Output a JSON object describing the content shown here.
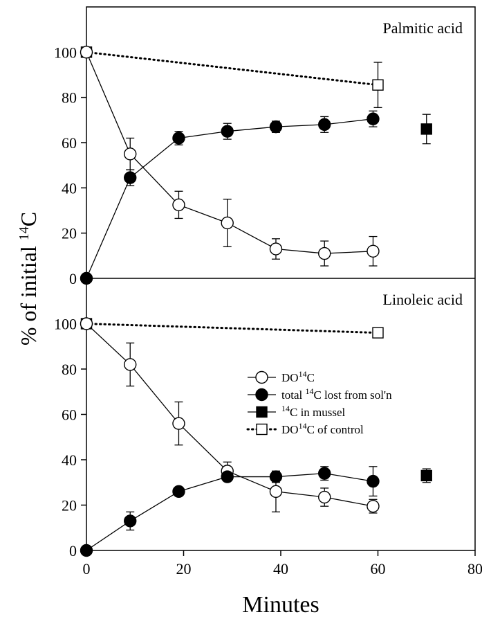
{
  "chart_data": {
    "type": "line",
    "xlabel": "Minutes",
    "ylabel": "% of initial ",
    "ylabel_superscript": "14",
    "ylabel_suffix": "C",
    "xlim": [
      0,
      80
    ],
    "x_ticks": [
      0,
      20,
      40,
      60,
      80
    ],
    "grid": false,
    "legend": {
      "placement": "inside bottom panel, right",
      "entries": [
        {
          "series": "doc",
          "prefix": "DO",
          "sup": "14",
          "suffix": "C"
        },
        {
          "series": "total",
          "prefix": "total ",
          "sup": "14",
          "suffix": "C lost from sol'n"
        },
        {
          "series": "mussel",
          "prefix": "",
          "sup": "14",
          "suffix": "C in mussel"
        },
        {
          "series": "control",
          "prefix": "DO",
          "sup": "14",
          "suffix": "C of control"
        }
      ]
    },
    "panels": [
      {
        "title": "Palmitic acid",
        "ylim": [
          0,
          120
        ],
        "y_ticks": [
          0,
          20,
          40,
          60,
          80,
          100
        ],
        "series": [
          {
            "id": "doc",
            "marker": "open-circle",
            "line": "solid",
            "x": [
              0,
              9,
              19,
              29,
              39,
              49,
              59
            ],
            "y": [
              100,
              55,
              32.5,
              24.5,
              13,
              11,
              12
            ],
            "err": [
              0,
              7,
              6,
              10.5,
              4.5,
              5.5,
              6.5
            ]
          },
          {
            "id": "total",
            "marker": "filled-circle",
            "line": "solid",
            "x": [
              0,
              9,
              19,
              29,
              39,
              49,
              59
            ],
            "y": [
              0,
              44.5,
              62,
              65,
              67,
              68,
              70.5
            ],
            "err": [
              0,
              3.5,
              3,
              3.5,
              2.5,
              3.5,
              3.5
            ]
          },
          {
            "id": "mussel",
            "marker": "filled-square",
            "line": "none",
            "x": [
              70
            ],
            "y": [
              66
            ],
            "err": [
              6.5
            ]
          },
          {
            "id": "control",
            "marker": "open-square",
            "line": "dotted",
            "x": [
              0,
              60
            ],
            "y": [
              100,
              85.5
            ],
            "err": [
              0,
              10
            ]
          }
        ]
      },
      {
        "title": "Linoleic acid",
        "ylim": [
          0,
          120
        ],
        "y_ticks": [
          0,
          20,
          40,
          60,
          80,
          100
        ],
        "series": [
          {
            "id": "doc",
            "marker": "open-circle",
            "line": "solid",
            "x": [
              0,
              9,
              19,
              29,
              39,
              49,
              59
            ],
            "y": [
              100,
              82,
              56,
              35,
              26,
              23.5,
              19.5
            ],
            "err": [
              0,
              9.5,
              9.5,
              4,
              9,
              4,
              3
            ]
          },
          {
            "id": "total",
            "marker": "filled-circle",
            "line": "solid",
            "x": [
              0,
              9,
              19,
              29,
              39,
              49,
              59
            ],
            "y": [
              0,
              13,
              26,
              32.5,
              32.5,
              34,
              30.5
            ],
            "err": [
              0,
              4,
              1,
              1.5,
              2.5,
              3,
              6.5
            ]
          },
          {
            "id": "mussel",
            "marker": "filled-square",
            "line": "none",
            "x": [
              70
            ],
            "y": [
              33
            ],
            "err": [
              3
            ]
          },
          {
            "id": "control",
            "marker": "open-square",
            "line": "dotted",
            "x": [
              0,
              60
            ],
            "y": [
              100,
              96
            ],
            "err": [
              0,
              0
            ]
          }
        ]
      }
    ]
  }
}
